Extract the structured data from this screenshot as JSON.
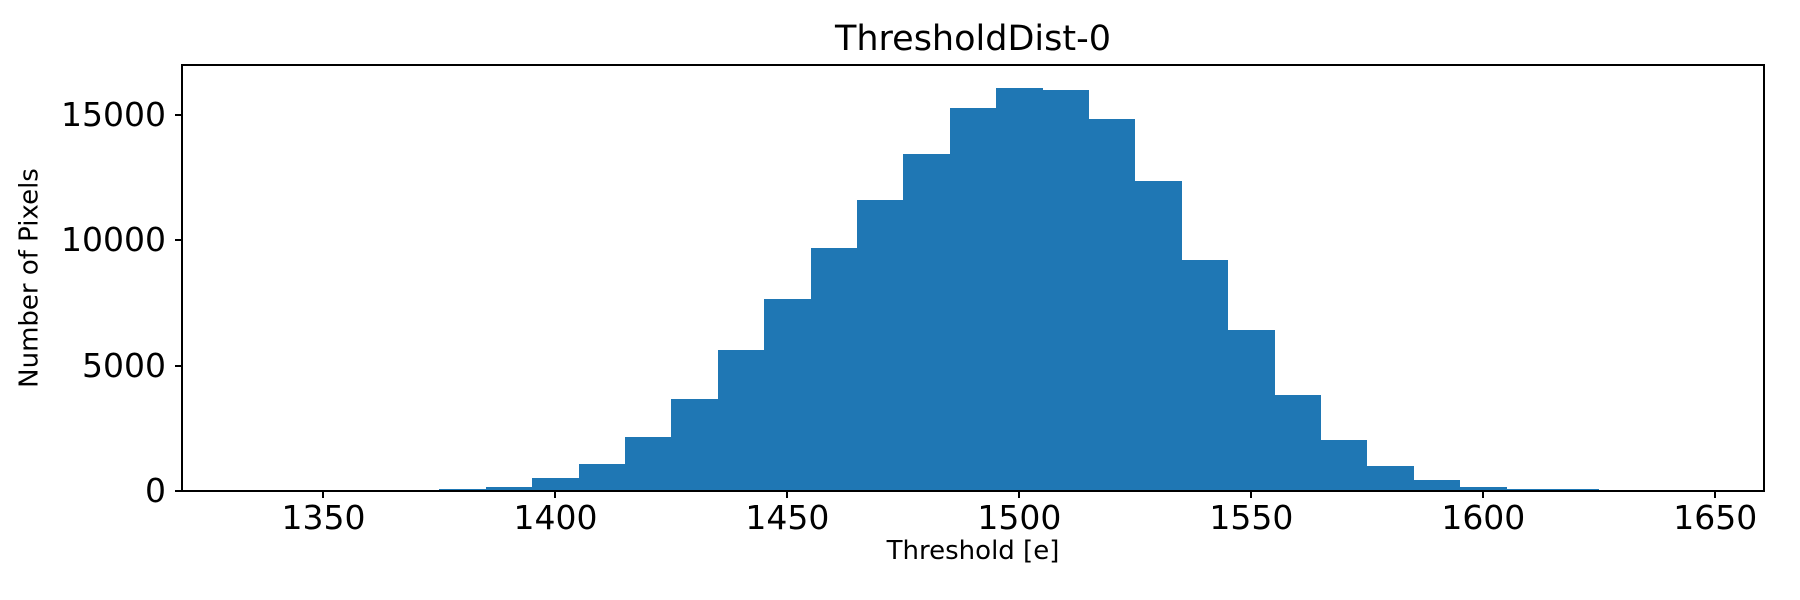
{
  "chart_data": {
    "type": "bar",
    "subtype": "histogram",
    "title": "ThresholdDist-0",
    "xlabel": "Threshold [e]",
    "ylabel": "Number of Pixels",
    "bar_color": "#1f77b4",
    "background_color": "#ffffff",
    "grid": "off",
    "legend": "none",
    "xlim": [
      1319.5,
      1660.5
    ],
    "ylim": [
      0,
      17000
    ],
    "x_ticks": [
      1350,
      1400,
      1450,
      1500,
      1550,
      1600,
      1650
    ],
    "y_ticks": [
      0,
      5000,
      10000,
      15000
    ],
    "bin_width": 10,
    "bin_edges": [
      1335,
      1345,
      1355,
      1365,
      1375,
      1385,
      1395,
      1405,
      1415,
      1425,
      1435,
      1445,
      1455,
      1465,
      1475,
      1485,
      1495,
      1505,
      1515,
      1525,
      1535,
      1545,
      1555,
      1565,
      1575,
      1585,
      1595,
      1605,
      1615,
      1625,
      1635,
      1645
    ],
    "values": [
      40,
      40,
      40,
      50,
      80,
      150,
      500,
      1080,
      2160,
      3680,
      5640,
      7680,
      9700,
      11630,
      13450,
      15300,
      16100,
      16020,
      14860,
      12390,
      9230,
      6430,
      3840,
      2040,
      1000,
      430,
      170,
      80,
      75,
      12,
      6
    ]
  }
}
